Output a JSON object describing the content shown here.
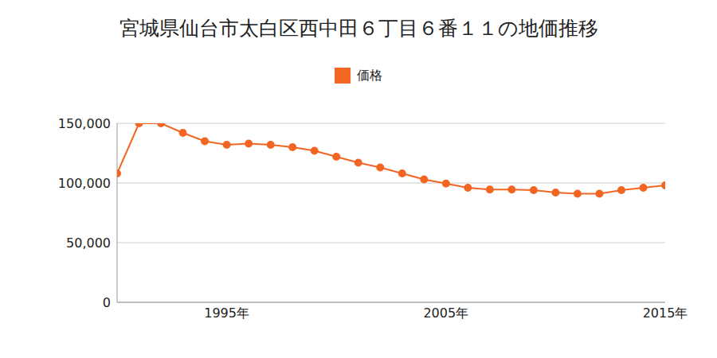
{
  "chart_data": {
    "type": "line",
    "title": "宮城県仙台市太白区西中田６丁目６番１１の地価推移",
    "x": [
      1990,
      1991,
      1992,
      1993,
      1994,
      1995,
      1996,
      1997,
      1998,
      1999,
      2000,
      2001,
      2002,
      2003,
      2004,
      2005,
      2006,
      2007,
      2008,
      2009,
      2010,
      2011,
      2012,
      2013,
      2014,
      2015
    ],
    "series": [
      {
        "name": "価格",
        "color": "#f26522",
        "marker": "circle",
        "values": [
          108000,
          150000,
          150000,
          142000,
          135000,
          132000,
          133000,
          132000,
          130000,
          127000,
          122000,
          117000,
          113000,
          108000,
          103000,
          99500,
          96000,
          94500,
          94500,
          94000,
          92000,
          91000,
          91000,
          94000,
          96000,
          98000
        ]
      }
    ],
    "xlim": [
      1990,
      2015
    ],
    "xticks": [
      {
        "value": 1995,
        "label": "1995年"
      },
      {
        "value": 2005,
        "label": "2005年"
      },
      {
        "value": 2015,
        "label": "2015年"
      }
    ],
    "ylim": [
      0,
      150000
    ],
    "yticks": [
      0,
      {
        "value": 50000,
        "label": "50,000"
      },
      {
        "value": 100000,
        "label": "100,000"
      },
      {
        "value": 150000,
        "label": "150,000"
      }
    ],
    "grid": true,
    "legend": "top"
  }
}
